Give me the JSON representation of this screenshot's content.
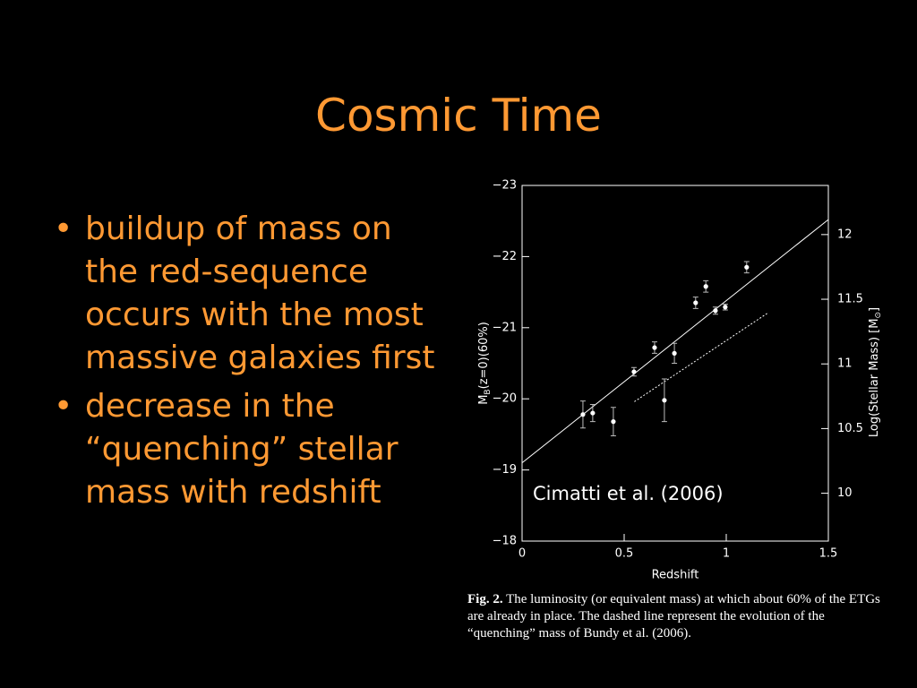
{
  "title": "Cosmic Time",
  "bullets": [
    "buildup of mass on the red-sequence occurs with the most massive galaxies first",
    "decrease in the “quenching” stellar mass with redshift"
  ],
  "chart_data": {
    "type": "scatter",
    "x": [
      0.298,
      0.346,
      0.447,
      0.548,
      0.649,
      0.697,
      0.746,
      0.85,
      0.9,
      0.947,
      0.995,
      1.1
    ],
    "values": [
      -19.78,
      -19.8,
      -19.68,
      -20.38,
      -20.72,
      -19.98,
      -20.64,
      -21.35,
      -21.58,
      -21.24,
      -21.29,
      -21.85
    ],
    "errors": [
      0.19,
      0.12,
      0.2,
      0.06,
      0.08,
      0.3,
      0.14,
      0.08,
      0.08,
      0.05,
      0.04,
      0.08
    ],
    "color": "#ffffff",
    "fit_line": {
      "x": [
        0,
        1.5
      ],
      "values": [
        -19.1,
        -22.52
      ]
    },
    "quenching_line": {
      "x": [
        0.55,
        1.2
      ],
      "values": [
        -19.96,
        -21.2
      ]
    },
    "xlim": [
      0,
      1.5
    ],
    "xticks": [
      0,
      0.5,
      1,
      1.5
    ],
    "ylim": [
      -18,
      -23
    ],
    "yticks": [
      {
        "value": -18,
        "label": "−18"
      },
      {
        "value": -19,
        "label": "−19"
      },
      {
        "value": -20,
        "label": "−20"
      },
      {
        "value": -21,
        "label": "−21"
      },
      {
        "value": -22,
        "label": "−22"
      },
      {
        "value": -23,
        "label": "−23"
      }
    ],
    "y2lim": [
      9.63,
      12.38
    ],
    "y2ticks": [
      10,
      10.5,
      11,
      11.5,
      12
    ],
    "x_label": "Redshift",
    "y_label": [
      "M",
      "B",
      "(z=0)(60%)"
    ],
    "y2_label": [
      "Log(Stellar Mass) [M",
      "⊙",
      "]"
    ],
    "annotation": "Cimatti et al. (2006)"
  },
  "caption": [
    "Fig. 2.",
    " The luminosity (or equivalent mass) at which about 60% of the ETGs are already in place. The dashed line represent the evolution of the “quenching” mass of Bundy et al. (2006)."
  ]
}
